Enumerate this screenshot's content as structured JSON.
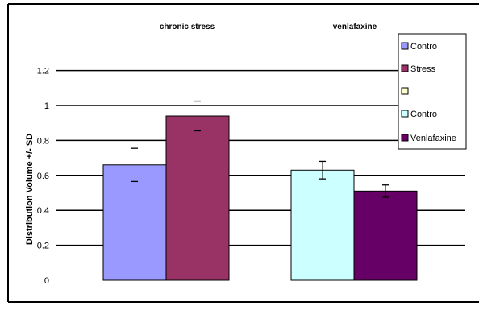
{
  "chart_data": {
    "type": "bar",
    "groups": [
      "chronic stress",
      "venlafaxine"
    ],
    "ylabel": "Distribution Volume +/- SD",
    "ylim": [
      0,
      1.2
    ],
    "yticks": [
      "0",
      "0.2",
      "0.4",
      "0.6",
      "0.8",
      "1",
      "1.2"
    ],
    "grid": true,
    "legend_position": "top-right",
    "legend": [
      {
        "label": "Contro",
        "color": "#9999ff"
      },
      {
        "label": "Stress",
        "color": "#993366"
      },
      {
        "label": "",
        "color": "#ffffcc"
      },
      {
        "label": "Contro",
        "color": "#ccffff"
      },
      {
        "label": "Venlafaxine",
        "color": "#660066"
      }
    ],
    "bars": [
      {
        "group": "chronic stress",
        "series": "Contro",
        "value": 0.66,
        "sd": 0.095,
        "color": "#9999ff",
        "error_style": "caps"
      },
      {
        "group": "chronic stress",
        "series": "Stress",
        "value": 0.94,
        "sd": 0.085,
        "color": "#993366",
        "error_style": "caps"
      },
      {
        "group": "venlafaxine",
        "series": "Contro",
        "value": 0.63,
        "sd": 0.05,
        "color": "#ccffff",
        "error_style": "full"
      },
      {
        "group": "venlafaxine",
        "series": "Venlafaxine",
        "value": 0.51,
        "sd": 0.035,
        "color": "#660066",
        "error_style": "full"
      }
    ]
  }
}
